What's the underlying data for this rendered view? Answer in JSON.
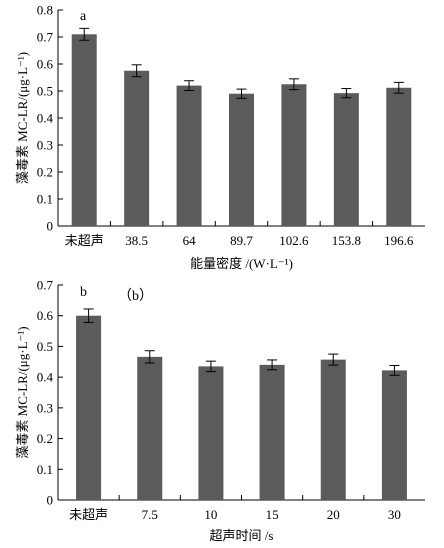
{
  "chart_data": [
    {
      "type": "bar",
      "panel_label": "a",
      "categories": [
        "未超声",
        "38.5",
        "64",
        "89.7",
        "102.6",
        "153.8",
        "196.6"
      ],
      "values": [
        0.71,
        0.575,
        0.52,
        0.49,
        0.525,
        0.492,
        0.512
      ],
      "errors": [
        0.022,
        0.022,
        0.018,
        0.017,
        0.02,
        0.017,
        0.02
      ],
      "xlabel": "能量密度 /(W·L⁻¹)",
      "ylabel": "藻毒素 MC-LR/(μg·L⁻¹)",
      "ylim": [
        0,
        0.8
      ],
      "yticks": [
        "0",
        "0.1",
        "0.2",
        "0.3",
        "0.4",
        "0.5",
        "0.6",
        "0.7",
        "0.8"
      ],
      "grid": false,
      "bar_color": "#5b5b5b"
    },
    {
      "type": "bar",
      "panel_label": "b",
      "annotation": "（b）",
      "categories": [
        "未超声",
        "7.5",
        "10",
        "15",
        "20",
        "30"
      ],
      "values": [
        0.6,
        0.466,
        0.435,
        0.44,
        0.457,
        0.422
      ],
      "errors": [
        0.022,
        0.02,
        0.017,
        0.016,
        0.018,
        0.016
      ],
      "xlabel": "超声时间 /s",
      "ylabel": "藻毒素 MC-LR/(μg·L⁻¹)",
      "ylim": [
        0,
        0.7
      ],
      "yticks": [
        "0",
        "0.1",
        "0.2",
        "0.3",
        "0.4",
        "0.5",
        "0.6",
        "0.7"
      ],
      "grid": false,
      "bar_color": "#5b5b5b"
    }
  ]
}
